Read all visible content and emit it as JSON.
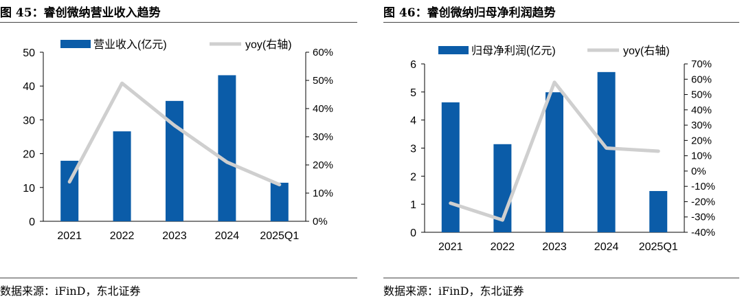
{
  "charts": [
    {
      "title": "图 45：睿创微纳营业收入趋势",
      "source": "数据来源：iFinD，东北证券"
    },
    {
      "title": "图 46：睿创微纳归母净利润趋势",
      "source": "数据来源：iFinD，东北证券"
    }
  ],
  "chart_data": [
    {
      "type": "bar",
      "categories": [
        "2021",
        "2022",
        "2023",
        "2024",
        "2025Q1"
      ],
      "series": [
        {
          "name": "营业收入(亿元)",
          "type": "bar",
          "axis": "left",
          "color": "#0b5ca8",
          "values": [
            17.9,
            26.6,
            35.6,
            43.2,
            11.4
          ]
        },
        {
          "name": "yoy(右轴)",
          "type": "line",
          "axis": "right",
          "color": "#cfcfcf",
          "values": [
            0.14,
            0.49,
            0.34,
            0.21,
            0.13
          ]
        }
      ],
      "y_left": {
        "min": 0,
        "max": 50,
        "step": 10,
        "ticks": [
          "0",
          "10",
          "20",
          "30",
          "40",
          "50"
        ]
      },
      "y_right": {
        "min": 0,
        "max": 0.6,
        "step": 0.1,
        "ticks": [
          "0%",
          "10%",
          "20%",
          "30%",
          "40%",
          "50%",
          "60%"
        ]
      },
      "legend": "top",
      "grid": false
    },
    {
      "type": "bar",
      "categories": [
        "2021",
        "2022",
        "2023",
        "2024",
        "2025Q1"
      ],
      "series": [
        {
          "name": "归母净利润(亿元)",
          "type": "bar",
          "axis": "left",
          "color": "#0b5ca8",
          "values": [
            4.63,
            3.14,
            4.99,
            5.71,
            1.47
          ]
        },
        {
          "name": "yoy(右轴)",
          "type": "line",
          "axis": "right",
          "color": "#cfcfcf",
          "values": [
            -0.21,
            -0.32,
            0.58,
            0.15,
            0.13
          ]
        }
      ],
      "y_left": {
        "min": 0,
        "max": 6,
        "step": 1,
        "ticks": [
          "0",
          "1",
          "2",
          "3",
          "4",
          "5",
          "6"
        ]
      },
      "y_right": {
        "min": -0.4,
        "max": 0.7,
        "step": 0.1,
        "ticks": [
          "-40%",
          "-30%",
          "-20%",
          "-10%",
          "0%",
          "10%",
          "20%",
          "30%",
          "40%",
          "50%",
          "60%",
          "70%"
        ]
      },
      "legend": "top",
      "grid": false
    }
  ]
}
